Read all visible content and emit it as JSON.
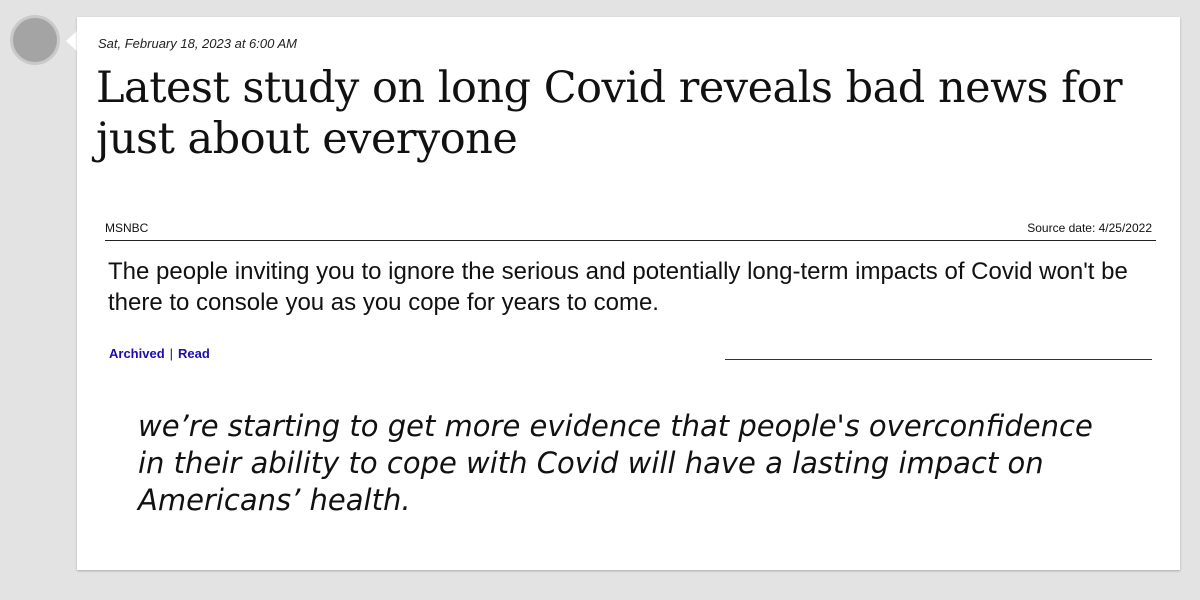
{
  "post": {
    "timestamp": "Sat, February 18, 2023 at 6:00 AM"
  },
  "article": {
    "headline": "Latest study on long Covid reveals bad news for just about everyone",
    "source_name": "MSNBC",
    "source_date": "Source date: 4/25/2022",
    "summary": "The people inviting you to ignore the serious and potentially long-term impacts of Covid won't be there to console you as you cope for years to come.",
    "links": {
      "archived_label": "Archived",
      "separator": "|",
      "read_label": "Read"
    },
    "quote": "we’re starting to get more evidence that people's overconfidence in their ability to cope with Covid will have a lasting impact on Americans’ health."
  },
  "colors": {
    "background": "#e3e3e3",
    "card": "#ffffff",
    "link": "#1a0dab",
    "avatar": "#a4a4a4"
  }
}
